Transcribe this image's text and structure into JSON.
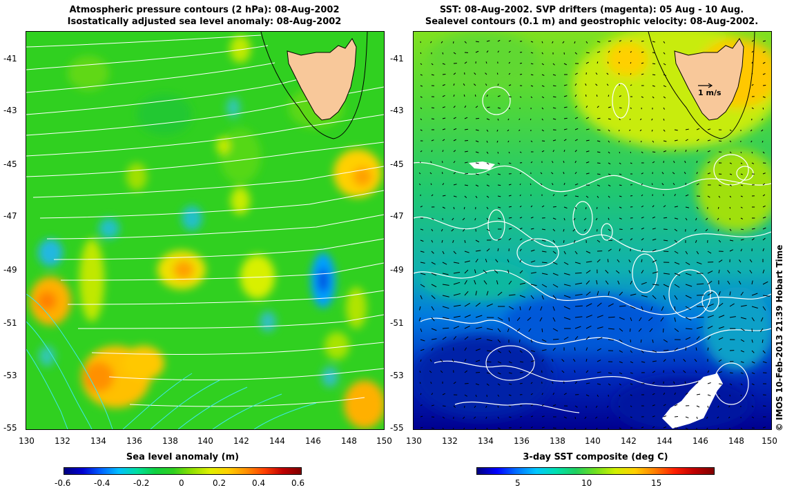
{
  "left_panel": {
    "title_line1": "Atmospheric pressure contours (2 hPa): 08-Aug-2002",
    "title_line2": "Isostatically adjusted sea level anomaly: 08-Aug-2002",
    "colorbar_title": "Sea level anomaly (m)",
    "colorbar_ticks": [
      "-0.6",
      "-0.4",
      "-0.2",
      "0",
      "0.2",
      "0.4",
      "0.6"
    ],
    "colormap": [
      "#00007f",
      "#0000d0",
      "#0060ff",
      "#00c0ff",
      "#00e0a0",
      "#10d040",
      "#30d020",
      "#90e000",
      "#e0f000",
      "#ffd000",
      "#ff9000",
      "#ff4000",
      "#c00000",
      "#800000"
    ]
  },
  "right_panel": {
    "title_line1": "SST: 08-Aug-2002. SVP drifters (magenta): 05 Aug - 10 Aug.",
    "title_line2": "Sealevel contours (0.1 m) and geostrophic velocity: 08-Aug-2002.",
    "colorbar_title": "3-day SST composite (deg C)",
    "colorbar_ticks": [
      "5",
      "10",
      "15"
    ],
    "velocity_scale_label": "1 m/s",
    "colormap": [
      "#00007f",
      "#0000ff",
      "#0070ff",
      "#00c8ff",
      "#00e0b0",
      "#20d060",
      "#70e020",
      "#d0f000",
      "#ffd000",
      "#ff8000",
      "#ff2000",
      "#c00000",
      "#800000"
    ]
  },
  "axes": {
    "x_ticks": [
      "130",
      "132",
      "134",
      "136",
      "138",
      "140",
      "142",
      "144",
      "146",
      "148",
      "150"
    ],
    "y_ticks": [
      "-41",
      "-43",
      "-45",
      "-47",
      "-49",
      "-51",
      "-53",
      "-55"
    ]
  },
  "credit": "© IMOS 10-Feb-2013 21:39 Hobart Time",
  "colors": {
    "land": "#f8c89a",
    "contour_white": "#ffffff",
    "contour_cyan": "#40e8e8",
    "coastline": "#000000"
  }
}
